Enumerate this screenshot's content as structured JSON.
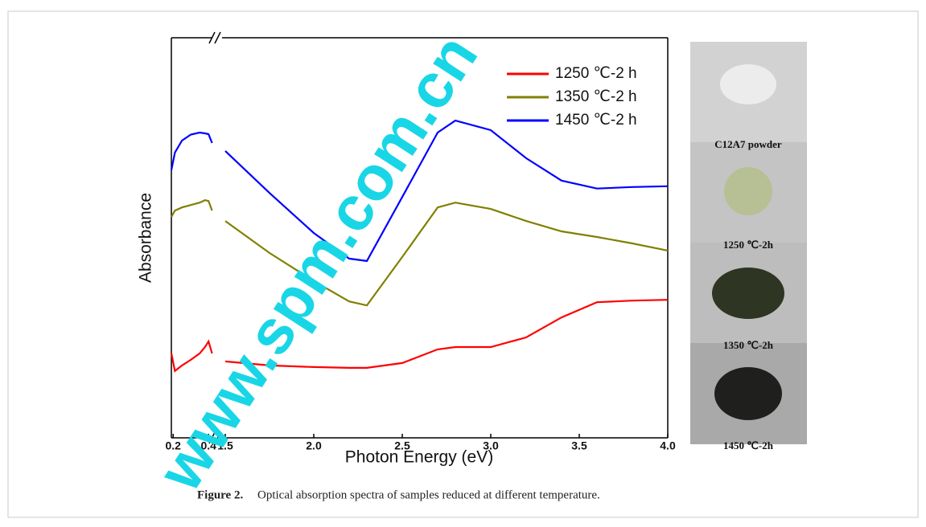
{
  "chart_data": {
    "type": "line",
    "x_label": "Photon Energy (eV)",
    "y_label": "Absorbance",
    "x": [
      0.19,
      0.21,
      0.25,
      0.3,
      0.35,
      0.38,
      0.4,
      0.42,
      1.5,
      1.75,
      2.0,
      2.2,
      2.3,
      2.5,
      2.7,
      2.8,
      3.0,
      3.2,
      3.4,
      3.6,
      3.8,
      4.0
    ],
    "series": [
      {
        "name": "1250 ℃-2 h",
        "color": "#ff0000",
        "values": [
          21.1,
          16.7,
          18.1,
          19.5,
          21.1,
          22.7,
          24.1,
          21.1,
          19.1,
          18.1,
          17.7,
          17.5,
          17.5,
          18.7,
          22.1,
          22.7,
          22.7,
          25.1,
          30.1,
          33.9,
          34.3,
          34.5
        ]
      },
      {
        "name": "1350 ℃-2 h",
        "color": "#808000",
        "values": [
          55.2,
          56.8,
          57.6,
          58.2,
          58.8,
          59.4,
          59.2,
          56.8,
          54.2,
          46.2,
          39.2,
          34.1,
          33.1,
          45.2,
          57.6,
          58.8,
          57.2,
          54.2,
          51.6,
          50.2,
          48.6,
          46.8
        ]
      },
      {
        "name": "1450 ℃-2 h",
        "color": "#0000ff",
        "values": [
          66.9,
          71.3,
          74.3,
          75.8,
          76.3,
          76.1,
          75.9,
          73.7,
          71.7,
          61.2,
          51.2,
          44.8,
          44.2,
          60.2,
          76.3,
          79.3,
          76.9,
          69.9,
          64.3,
          62.3,
          62.7,
          62.9
        ]
      }
    ],
    "xlim": [
      0.19,
      4.0
    ],
    "xbreak": [
      0.44,
      1.5
    ],
    "xticks": [
      0.2,
      0.4,
      1.5,
      {
        "value": 2,
        "label": "2.0"
      },
      2.5,
      {
        "value": 3,
        "label": "3.0"
      },
      3.5,
      {
        "value": 4,
        "label": "4.0"
      }
    ],
    "ylim": [
      0,
      100
    ],
    "legend": "upper right",
    "grid": false
  },
  "photo_labels": [
    "C12A7 powder",
    "1250 ℃-2h",
    "1350 ℃-2h",
    "1450 ℃-2h"
  ],
  "figure": {
    "label": "Figure 2.",
    "caption": "Optical absorption spectra of samples reduced at different temperature."
  },
  "watermark": "www.spm.com.cn"
}
